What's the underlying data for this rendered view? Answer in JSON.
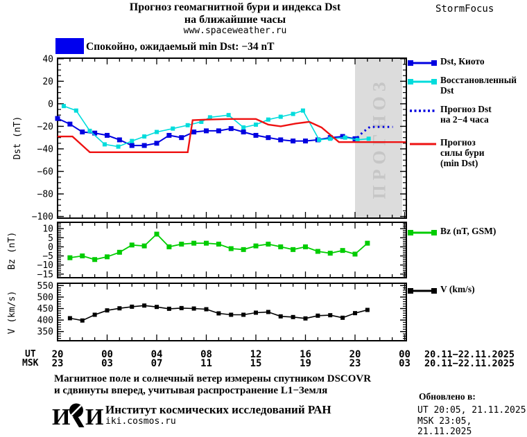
{
  "header": {
    "title_line1": "Прогноз геомагнитной бури и индекса Dst",
    "title_line2": "на ближайшие часы",
    "title_line3": "www.spaceweather.ru",
    "brand": "StormFocus",
    "status_text": "Спокойно, ожидаемый min Dst: −34 nT",
    "status_color": "#0000ee"
  },
  "legend_dst": {
    "items": [
      {
        "lines": [
          "Dst, Киото"
        ],
        "color": "#0000e0",
        "line": "solid",
        "marker": true
      },
      {
        "lines": [
          "Восстановленный",
          "Dst"
        ],
        "color": "#00dcdc",
        "line": "solid",
        "marker": true
      },
      {
        "lines": [
          "Прогноз Dst",
          "на 2−4 часа"
        ],
        "color": "#0000e0",
        "line": "dotted",
        "marker": false
      },
      {
        "lines": [
          "Прогноз",
          "силы бури",
          "(min Dst)"
        ],
        "color": "#ee1111",
        "line": "solid",
        "marker": false
      }
    ]
  },
  "legend_bz": {
    "lines": [
      "Bz (nT, GSM)"
    ],
    "color": "#00cc00",
    "line": "solid",
    "marker": true
  },
  "legend_v": {
    "lines": [
      "V (km/s)"
    ],
    "color": "#000000",
    "line": "solid",
    "marker": true
  },
  "x_axis": {
    "row_labels": {
      "ut": "UT",
      "msk": "MSK"
    },
    "ut_labels": [
      "20",
      "00",
      "04",
      "08",
      "12",
      "16",
      "20",
      "00"
    ],
    "msk_labels": [
      "23",
      "03",
      "07",
      "11",
      "15",
      "19",
      "23",
      "03"
    ],
    "ut_date": "20.11−22.11.2025",
    "msk_date": "20.11−22.11.2025",
    "hours_per_major": 4
  },
  "chart_data": [
    {
      "id": "dst",
      "type": "line",
      "ylabel": "Dst (nT)",
      "ylim": [
        -101.5,
        40.5
      ],
      "yticks_major": [
        40,
        20,
        0,
        -20,
        -40,
        -60,
        -80,
        -100
      ],
      "ytick_minor_step": 5,
      "forecast_region": {
        "t_start": 24,
        "t_end": 27.8,
        "label": "ПРОГНОЗ",
        "fill": "#dcdcdc",
        "text_color": "#c6c6c6"
      },
      "series": [
        {
          "name": "Dst, Киото",
          "color": "#0000e0",
          "marker": true,
          "marker_size": 7,
          "width": 2,
          "t0": 0,
          "dt": 1,
          "values": [
            -13,
            -18,
            -25,
            -26,
            -28,
            -32,
            -37,
            -37,
            -35,
            -28,
            -30,
            -25,
            -24,
            -24,
            -22,
            -25,
            -28,
            -30,
            -32,
            -33,
            -33,
            -32,
            -30,
            -29,
            -31
          ]
        },
        {
          "name": "Восстановленный Dst",
          "color": "#00dcdc",
          "marker": true,
          "marker_size": 6,
          "width": 1.6,
          "points": [
            [
              0.5,
              -2
            ],
            [
              1.5,
              -6
            ],
            [
              2.6,
              -24
            ],
            [
              3.8,
              -36
            ],
            [
              4.9,
              -38
            ],
            [
              6,
              -33
            ],
            [
              7,
              -29
            ],
            [
              8,
              -25
            ],
            [
              9.3,
              -22
            ],
            [
              10.5,
              -19
            ],
            [
              11.6,
              -16
            ],
            [
              12.3,
              -12
            ],
            [
              13.8,
              -10
            ],
            [
              15,
              -21
            ],
            [
              16,
              -18.5
            ],
            [
              17,
              -14
            ],
            [
              18,
              -11.5
            ],
            [
              19,
              -9
            ],
            [
              19.8,
              -6
            ],
            [
              21.1,
              -32
            ],
            [
              22,
              -31
            ],
            [
              23.2,
              -30
            ],
            [
              24.2,
              -32
            ],
            [
              25.1,
              -31
            ]
          ]
        },
        {
          "name": "Прогноз Dst на 2−4 часа",
          "color": "#0000e0",
          "style": "dotted",
          "width": 3,
          "points": [
            [
              24.2,
              -30
            ],
            [
              24.6,
              -25.5
            ],
            [
              25.2,
              -20.5
            ],
            [
              27.05,
              -20.5
            ]
          ]
        },
        {
          "name": "Прогноз силы бури (min Dst)",
          "color": "#ee1111",
          "width": 2.4,
          "points": [
            [
              0,
              -29
            ],
            [
              1.2,
              -29
            ],
            [
              2.6,
              -43
            ],
            [
              10.5,
              -43
            ],
            [
              10.9,
              -14.5
            ],
            [
              12,
              -14
            ],
            [
              14,
              -13.5
            ],
            [
              16,
              -13.5
            ],
            [
              17,
              -18.5
            ],
            [
              18,
              -20
            ],
            [
              19.2,
              -17.5
            ],
            [
              20.3,
              -16
            ],
            [
              21.3,
              -21
            ],
            [
              22.7,
              -34
            ],
            [
              28.1,
              -34
            ]
          ]
        }
      ]
    },
    {
      "id": "bz",
      "type": "line",
      "ylabel": "Bz (nT)",
      "ylim": [
        -17,
        13.5
      ],
      "yticks_major": [
        10,
        5,
        0,
        -5,
        -10,
        -15
      ],
      "ytick_minor_step": 1,
      "series": [
        {
          "name": "Bz (nT, GSM)",
          "color": "#00cc00",
          "marker": true,
          "marker_size": 7,
          "width": 1.8,
          "t0": 1,
          "dt": 1,
          "values": [
            -6,
            -5,
            -7,
            -5.5,
            -3,
            1,
            0.5,
            7,
            0,
            1.5,
            2,
            2,
            1.5,
            -1,
            -1.5,
            0.5,
            1.5,
            0,
            -1.5,
            0,
            -2.5,
            -3.5,
            -2,
            -4,
            2
          ]
        }
      ]
    },
    {
      "id": "v",
      "type": "line",
      "ylabel": "V (km/s)",
      "ylim": [
        310,
        560
      ],
      "yticks_major": [
        550,
        500,
        450,
        400,
        350
      ],
      "ytick_minor_step": 10,
      "series": [
        {
          "name": "V (km/s)",
          "color": "#000000",
          "marker": true,
          "marker_size": 6,
          "width": 1.6,
          "t0": 1,
          "dt": 1,
          "values": [
            408,
            398,
            423,
            442,
            451,
            458,
            463,
            457,
            449,
            452,
            450,
            447,
            429,
            423,
            423,
            432,
            435,
            416,
            413,
            407,
            419,
            421,
            410,
            430,
            444
          ]
        }
      ]
    }
  ],
  "footer": {
    "line1": "Магнитное поле и солнечный ветер измерены спутником DSCOVR",
    "line2": "и сдвинуты вперед, учитывая распространение L1−Земля",
    "logo_text": "ИКИ",
    "institute": "Институт космических исследований РАН",
    "site": "iki.cosmos.ru",
    "updated_label": "Обновлено в:",
    "updated_ut": "UT  20:05, 21.11.2025",
    "updated_msk": "MSK 23:05, 21.11.2025"
  }
}
